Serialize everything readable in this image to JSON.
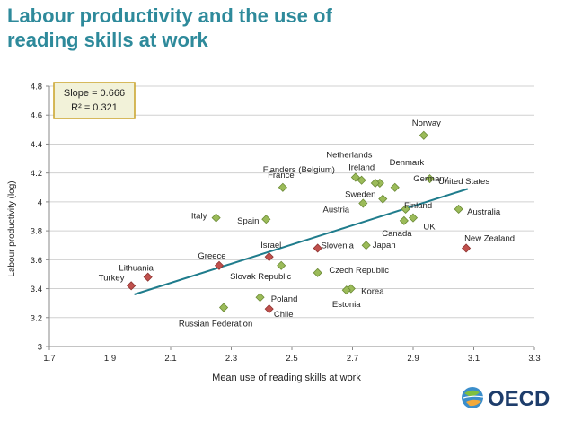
{
  "title_line1": "Labour productivity and the use of",
  "title_line2": "reading skills at work",
  "logo_text": "OECD",
  "colors": {
    "title": "#2e8a9b",
    "green_marker": "#9bbb59",
    "red_marker": "#c0504d",
    "trendline": "#1f7c8c",
    "box_border": "#c9a227",
    "box_fill": "#f2f2d9"
  },
  "chart_data": {
    "type": "scatter",
    "xlabel": "Mean use of reading skills at work",
    "ylabel": "Labour productivity (log)",
    "xlim": [
      1.7,
      3.3
    ],
    "ylim": [
      3,
      4.8
    ],
    "x_ticks": [
      "1.7",
      "1.9",
      "2.1",
      "2.3",
      "2.5",
      "2.7",
      "2.9",
      "3.1",
      "3.3"
    ],
    "y_ticks": [
      "3",
      "3.2",
      "3.4",
      "3.6",
      "3.8",
      "4",
      "4.2",
      "4.4",
      "4.6",
      "4.8"
    ],
    "grid": "horizontal",
    "annotation": {
      "slope": "Slope = 0.666",
      "r2": "R² = 0.321"
    },
    "trendline": {
      "x": [
        1.98,
        3.08
      ],
      "y": [
        3.36,
        4.09
      ]
    },
    "points": [
      {
        "label": "Norway",
        "x": 2.935,
        "y": 4.46,
        "group": "green"
      },
      {
        "label": "Ireland",
        "x": 2.73,
        "y": 4.15,
        "group": "green"
      },
      {
        "label": "Netherlands",
        "x": 2.71,
        "y": 4.17,
        "group": "green"
      },
      {
        "label": "Denmark",
        "x": 2.79,
        "y": 4.13,
        "group": "green"
      },
      {
        "label": "Germany",
        "x": 2.84,
        "y": 4.1,
        "group": "green"
      },
      {
        "label": "United States",
        "x": 2.955,
        "y": 4.16,
        "group": "green"
      },
      {
        "label": "Flanders (Belgium)",
        "x": 2.775,
        "y": 4.13,
        "group": "green"
      },
      {
        "label": "France",
        "x": 2.47,
        "y": 4.1,
        "group": "green"
      },
      {
        "label": "Sweden",
        "x": 2.8,
        "y": 4.02,
        "group": "green"
      },
      {
        "label": "Finland",
        "x": 2.875,
        "y": 3.95,
        "group": "green"
      },
      {
        "label": "Australia",
        "x": 3.05,
        "y": 3.95,
        "group": "green"
      },
      {
        "label": "Austria",
        "x": 2.735,
        "y": 3.99,
        "group": "green"
      },
      {
        "label": "UK",
        "x": 2.9,
        "y": 3.89,
        "group": "green"
      },
      {
        "label": "Canada",
        "x": 2.87,
        "y": 3.87,
        "group": "green"
      },
      {
        "label": "Italy",
        "x": 2.25,
        "y": 3.89,
        "group": "green"
      },
      {
        "label": "Spain",
        "x": 2.415,
        "y": 3.88,
        "group": "green"
      },
      {
        "label": "Japan",
        "x": 2.745,
        "y": 3.7,
        "group": "green"
      },
      {
        "label": "Slovak Republic",
        "x": 2.465,
        "y": 3.56,
        "group": "green"
      },
      {
        "label": "Czech Republic",
        "x": 2.585,
        "y": 3.51,
        "group": "green"
      },
      {
        "label": "Korea",
        "x": 2.695,
        "y": 3.4,
        "group": "green"
      },
      {
        "label": "Estonia",
        "x": 2.68,
        "y": 3.39,
        "group": "green"
      },
      {
        "label": "Poland",
        "x": 2.395,
        "y": 3.34,
        "group": "green"
      },
      {
        "label": "Russian Federation",
        "x": 2.275,
        "y": 3.27,
        "group": "green"
      },
      {
        "label": "Israel",
        "x": 2.425,
        "y": 3.62,
        "group": "red"
      },
      {
        "label": "Slovenia",
        "x": 2.585,
        "y": 3.68,
        "group": "red"
      },
      {
        "label": "Greece",
        "x": 2.26,
        "y": 3.56,
        "group": "red"
      },
      {
        "label": "Lithuania",
        "x": 2.025,
        "y": 3.48,
        "group": "red"
      },
      {
        "label": "Turkey",
        "x": 1.97,
        "y": 3.42,
        "group": "red"
      },
      {
        "label": "Chile",
        "x": 2.425,
        "y": 3.26,
        "group": "red"
      },
      {
        "label": "New Zealand",
        "x": 3.075,
        "y": 3.68,
        "group": "red"
      }
    ]
  }
}
